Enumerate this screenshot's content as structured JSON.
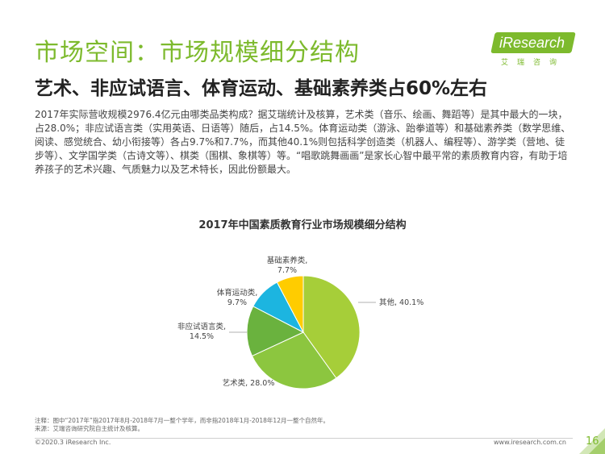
{
  "header": {
    "title": "市场空间：市场规模细分结构",
    "subtitle": "艺术、非应试语言、体育运动、基础素养类占60%左右"
  },
  "logo": {
    "brand": "iResearch",
    "chinese": "艾瑞咨询"
  },
  "body_text": "2017年实际营收规模2976.4亿元由哪类品类构成？据艾瑞统计及核算，艺术类（音乐、绘画、舞蹈等）是其中最大的一块，占28.0%；非应试语言类（实用英语、日语等）随后，占14.5%。体育运动类（游泳、跆拳道等）和基础素养类（数学思维、阅读、感觉统合、幼小衔接等）各占9.7%和7.7%，而其他40.1%则包括科学创造类（机器人、编程等）、游学类（营地、徒步等）、文学国学类（古诗文等）、棋类（围棋、象棋等）等。“唱歌跳舞画画”是家长心智中最平常的素质教育内容，有助于培养孩子的艺术兴趣、气质魅力以及艺术特长，因此份额最大。",
  "chart_data": {
    "type": "pie",
    "title": "2017年中国素质教育行业市场规模细分结构",
    "slices": [
      {
        "label": "其他",
        "value": 40.1,
        "display": "其他, 40.1%",
        "color": "#A6CE39"
      },
      {
        "label": "艺术类",
        "value": 28.0,
        "display": "艺术类, 28.0%",
        "color": "#8CC63F"
      },
      {
        "label": "非应试语言类",
        "value": 14.5,
        "display_line1": "非应试语言类,",
        "display_line2": "14.5%",
        "color": "#6AB23E"
      },
      {
        "label": "体育运动类",
        "value": 9.7,
        "display_line1": "体育运动类,",
        "display_line2": "9.7%",
        "color": "#1CB5E0"
      },
      {
        "label": "基础素养类",
        "value": 7.7,
        "display_line1": "基础素养类,",
        "display_line2": "7.7%",
        "color": "#FFCC00"
      }
    ]
  },
  "notes": {
    "line1": "注释：图中“2017年”指2017年8月-2018年7月一整个学年，而非指2018年1月-2018年12月一整个自然年。",
    "line2": "来源：艾瑞咨询研究院自主统计及核算。"
  },
  "footer": {
    "copyright": "©2020.3 iResearch Inc.",
    "website": "www.iresearch.com.cn",
    "page": "16"
  },
  "colors": {
    "accent": "#7DBA2D"
  }
}
